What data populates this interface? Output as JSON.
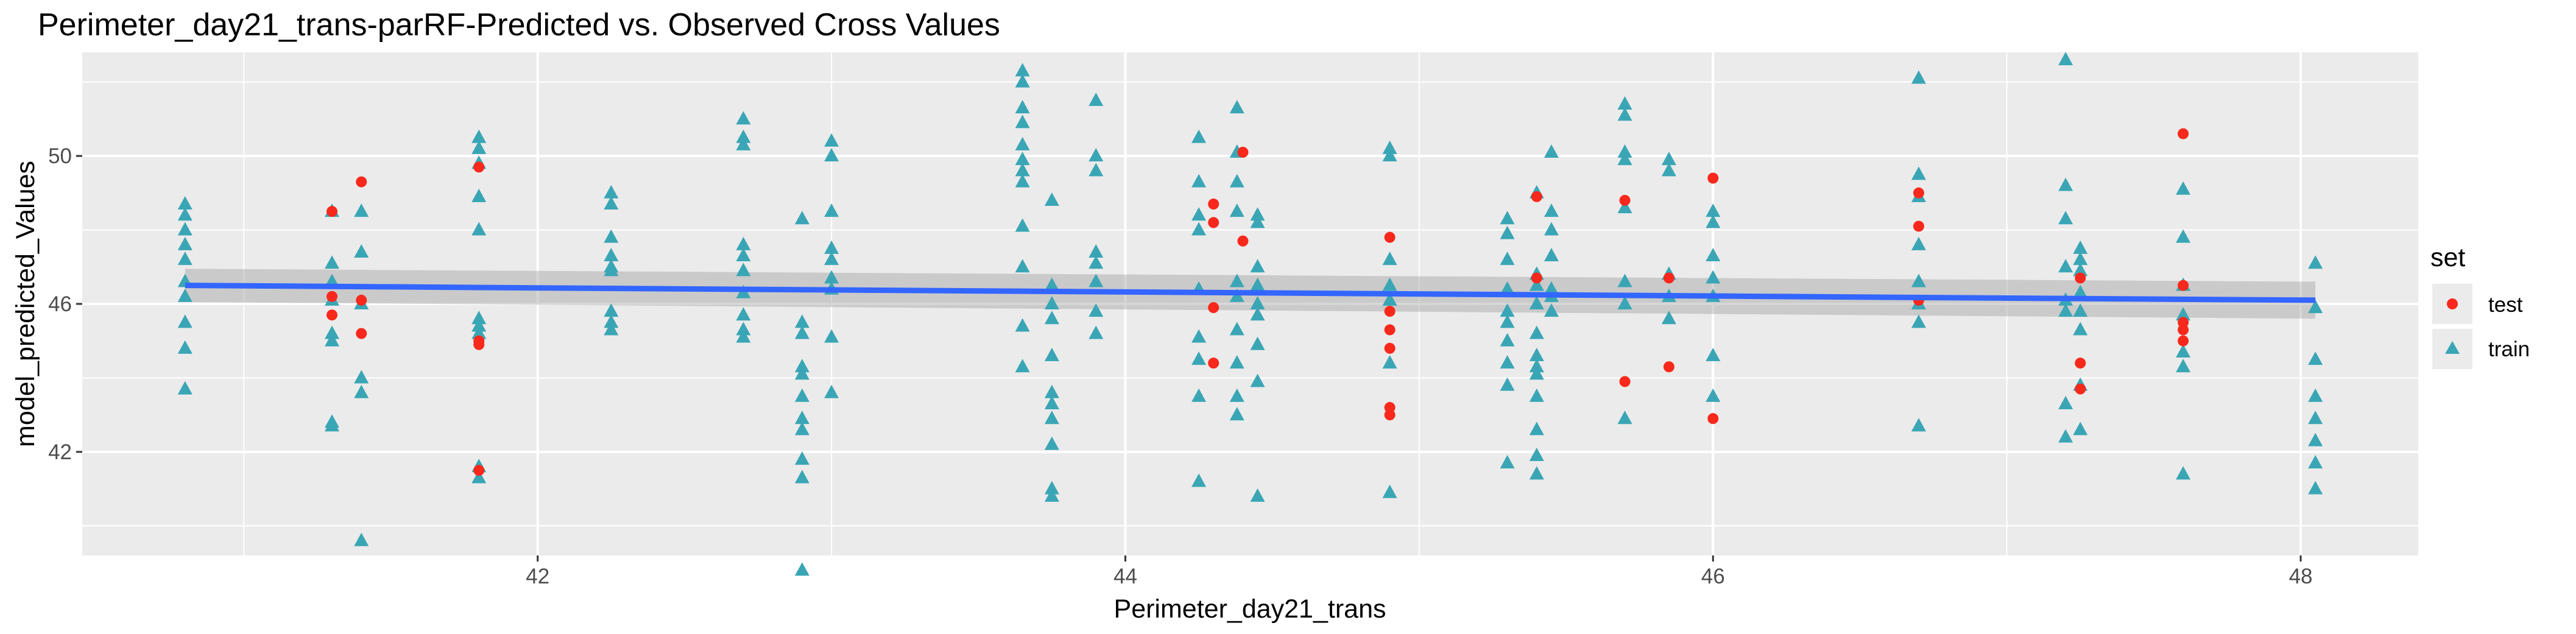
{
  "chart_data": {
    "type": "scatter",
    "title": "Perimeter_day21_trans-parRF-Predicted vs. Observed Cross Values",
    "xlabel": "Perimeter_day21_trans",
    "ylabel": "model_predicted_Values",
    "xlim": [
      40.45,
      48.4
    ],
    "ylim": [
      39.2,
      52.8
    ],
    "x_ticks": [
      42,
      44,
      46,
      48
    ],
    "x_tick_labels": [
      "42",
      "44",
      "46",
      "48"
    ],
    "y_ticks": [
      42,
      46,
      50
    ],
    "y_tick_labels": [
      "42",
      "46",
      "50"
    ],
    "grid": true,
    "legend": {
      "title": "set",
      "position": "right"
    },
    "colors": {
      "panel": "#ebebeb",
      "grid": "#ffffff",
      "fit_line": "#3366ff",
      "ribbon": "#999999"
    },
    "series": [
      {
        "name": "test",
        "marker": "circle",
        "color": "#f8291c",
        "points": [
          [
            41.3,
            48.5
          ],
          [
            41.3,
            46.2
          ],
          [
            41.3,
            45.7
          ],
          [
            41.4,
            49.3
          ],
          [
            41.4,
            46.1
          ],
          [
            41.4,
            45.2
          ],
          [
            41.8,
            49.7
          ],
          [
            41.8,
            45.0
          ],
          [
            41.8,
            44.9
          ],
          [
            41.8,
            41.5
          ],
          [
            44.3,
            48.7
          ],
          [
            44.3,
            48.2
          ],
          [
            44.3,
            45.9
          ],
          [
            44.3,
            44.4
          ],
          [
            44.4,
            50.1
          ],
          [
            44.4,
            47.7
          ],
          [
            44.9,
            47.8
          ],
          [
            44.9,
            45.8
          ],
          [
            44.9,
            45.3
          ],
          [
            44.9,
            44.8
          ],
          [
            44.9,
            43.2
          ],
          [
            44.9,
            43.0
          ],
          [
            45.4,
            46.7
          ],
          [
            45.4,
            48.9
          ],
          [
            45.7,
            48.8
          ],
          [
            45.7,
            43.9
          ],
          [
            45.85,
            46.7
          ],
          [
            45.85,
            44.3
          ],
          [
            46.0,
            49.4
          ],
          [
            46.0,
            42.9
          ],
          [
            46.7,
            49.0
          ],
          [
            46.7,
            48.1
          ],
          [
            46.7,
            46.1
          ],
          [
            47.25,
            46.7
          ],
          [
            47.25,
            44.4
          ],
          [
            47.25,
            43.7
          ],
          [
            47.6,
            50.6
          ],
          [
            47.6,
            46.5
          ],
          [
            47.6,
            45.5
          ],
          [
            47.6,
            45.3
          ],
          [
            47.6,
            45.0
          ]
        ]
      },
      {
        "name": "train",
        "marker": "triangle",
        "color": "#3aa6b5",
        "points": [
          [
            40.8,
            48.7
          ],
          [
            40.8,
            48.4
          ],
          [
            40.8,
            48.0
          ],
          [
            40.8,
            47.6
          ],
          [
            40.8,
            47.2
          ],
          [
            40.8,
            46.6
          ],
          [
            40.8,
            46.2
          ],
          [
            40.8,
            45.5
          ],
          [
            40.8,
            44.8
          ],
          [
            40.8,
            43.7
          ],
          [
            41.3,
            48.5
          ],
          [
            41.3,
            47.1
          ],
          [
            41.3,
            46.6
          ],
          [
            41.3,
            46.1
          ],
          [
            41.3,
            45.2
          ],
          [
            41.3,
            45.0
          ],
          [
            41.3,
            42.8
          ],
          [
            41.3,
            42.7
          ],
          [
            41.4,
            48.5
          ],
          [
            41.4,
            47.4
          ],
          [
            41.4,
            46.0
          ],
          [
            41.4,
            44.0
          ],
          [
            41.4,
            43.6
          ],
          [
            41.4,
            39.6
          ],
          [
            41.8,
            50.5
          ],
          [
            41.8,
            50.2
          ],
          [
            41.8,
            49.8
          ],
          [
            41.8,
            48.9
          ],
          [
            41.8,
            48.0
          ],
          [
            41.8,
            45.6
          ],
          [
            41.8,
            45.4
          ],
          [
            41.8,
            45.2
          ],
          [
            41.8,
            41.6
          ],
          [
            41.8,
            41.3
          ],
          [
            42.25,
            49.0
          ],
          [
            42.25,
            48.7
          ],
          [
            42.25,
            47.8
          ],
          [
            42.25,
            47.3
          ],
          [
            42.25,
            47.0
          ],
          [
            42.25,
            46.9
          ],
          [
            42.25,
            45.8
          ],
          [
            42.25,
            45.5
          ],
          [
            42.25,
            45.3
          ],
          [
            42.7,
            51.0
          ],
          [
            42.7,
            50.5
          ],
          [
            42.7,
            50.3
          ],
          [
            42.7,
            47.6
          ],
          [
            42.7,
            47.3
          ],
          [
            42.7,
            46.9
          ],
          [
            42.7,
            46.3
          ],
          [
            42.7,
            45.7
          ],
          [
            42.7,
            45.3
          ],
          [
            42.7,
            45.1
          ],
          [
            42.9,
            48.3
          ],
          [
            42.9,
            45.5
          ],
          [
            42.9,
            45.2
          ],
          [
            42.9,
            44.3
          ],
          [
            42.9,
            44.1
          ],
          [
            42.9,
            43.5
          ],
          [
            42.9,
            42.9
          ],
          [
            42.9,
            42.6
          ],
          [
            42.9,
            41.8
          ],
          [
            42.9,
            41.3
          ],
          [
            42.9,
            38.8
          ],
          [
            43.0,
            50.4
          ],
          [
            43.0,
            50.0
          ],
          [
            43.0,
            48.5
          ],
          [
            43.0,
            47.5
          ],
          [
            43.0,
            47.2
          ],
          [
            43.0,
            46.7
          ],
          [
            43.0,
            46.4
          ],
          [
            43.0,
            45.1
          ],
          [
            43.0,
            43.6
          ],
          [
            43.65,
            52.3
          ],
          [
            43.65,
            52.0
          ],
          [
            43.65,
            51.3
          ],
          [
            43.65,
            50.9
          ],
          [
            43.65,
            50.3
          ],
          [
            43.65,
            49.9
          ],
          [
            43.65,
            49.6
          ],
          [
            43.65,
            49.3
          ],
          [
            43.65,
            48.1
          ],
          [
            43.65,
            47.0
          ],
          [
            43.65,
            45.4
          ],
          [
            43.65,
            44.3
          ],
          [
            43.75,
            48.8
          ],
          [
            43.75,
            46.5
          ],
          [
            43.75,
            46.0
          ],
          [
            43.75,
            45.6
          ],
          [
            43.75,
            44.6
          ],
          [
            43.75,
            43.6
          ],
          [
            43.75,
            43.3
          ],
          [
            43.75,
            42.9
          ],
          [
            43.75,
            42.2
          ],
          [
            43.75,
            41.0
          ],
          [
            43.75,
            40.8
          ],
          [
            43.9,
            51.5
          ],
          [
            43.9,
            50.0
          ],
          [
            43.9,
            49.6
          ],
          [
            43.9,
            47.4
          ],
          [
            43.9,
            47.1
          ],
          [
            43.9,
            46.6
          ],
          [
            43.9,
            45.8
          ],
          [
            43.9,
            45.2
          ],
          [
            44.25,
            50.5
          ],
          [
            44.25,
            49.3
          ],
          [
            44.25,
            48.4
          ],
          [
            44.25,
            48.0
          ],
          [
            44.25,
            46.4
          ],
          [
            44.25,
            45.1
          ],
          [
            44.25,
            44.5
          ],
          [
            44.25,
            43.5
          ],
          [
            44.25,
            41.2
          ],
          [
            44.38,
            51.3
          ],
          [
            44.38,
            50.1
          ],
          [
            44.38,
            49.3
          ],
          [
            44.38,
            48.5
          ],
          [
            44.38,
            46.6
          ],
          [
            44.38,
            46.2
          ],
          [
            44.38,
            45.3
          ],
          [
            44.38,
            44.4
          ],
          [
            44.38,
            43.5
          ],
          [
            44.38,
            43.0
          ],
          [
            44.45,
            48.4
          ],
          [
            44.45,
            48.2
          ],
          [
            44.45,
            47.0
          ],
          [
            44.45,
            46.5
          ],
          [
            44.45,
            46.0
          ],
          [
            44.45,
            45.7
          ],
          [
            44.45,
            44.9
          ],
          [
            44.45,
            43.9
          ],
          [
            44.45,
            40.8
          ],
          [
            44.9,
            50.2
          ],
          [
            44.9,
            50.0
          ],
          [
            44.9,
            47.2
          ],
          [
            44.9,
            46.5
          ],
          [
            44.9,
            46.1
          ],
          [
            44.9,
            44.4
          ],
          [
            44.9,
            40.9
          ],
          [
            45.3,
            48.3
          ],
          [
            45.3,
            47.9
          ],
          [
            45.3,
            47.2
          ],
          [
            45.3,
            46.4
          ],
          [
            45.3,
            45.8
          ],
          [
            45.3,
            45.5
          ],
          [
            45.3,
            45.0
          ],
          [
            45.3,
            44.4
          ],
          [
            45.3,
            43.8
          ],
          [
            45.3,
            41.7
          ],
          [
            45.45,
            50.1
          ],
          [
            45.45,
            48.5
          ],
          [
            45.45,
            48.0
          ],
          [
            45.45,
            47.3
          ],
          [
            45.45,
            46.4
          ],
          [
            45.45,
            46.2
          ],
          [
            45.45,
            45.8
          ],
          [
            45.85,
            49.9
          ],
          [
            45.85,
            49.6
          ],
          [
            45.85,
            46.8
          ],
          [
            45.85,
            45.6
          ],
          [
            45.85,
            46.2
          ],
          [
            45.4,
            49.0
          ],
          [
            45.4,
            46.8
          ],
          [
            45.4,
            46.5
          ],
          [
            45.4,
            46.0
          ],
          [
            45.4,
            45.2
          ],
          [
            45.4,
            44.6
          ],
          [
            45.4,
            44.3
          ],
          [
            45.4,
            44.1
          ],
          [
            45.4,
            43.5
          ],
          [
            45.4,
            42.6
          ],
          [
            45.4,
            41.9
          ],
          [
            45.4,
            41.4
          ],
          [
            45.7,
            51.4
          ],
          [
            45.7,
            51.1
          ],
          [
            45.7,
            50.1
          ],
          [
            45.7,
            49.9
          ],
          [
            45.7,
            48.6
          ],
          [
            45.7,
            46.6
          ],
          [
            45.7,
            46.0
          ],
          [
            45.7,
            42.9
          ],
          [
            46.0,
            48.5
          ],
          [
            46.0,
            48.2
          ],
          [
            46.0,
            47.3
          ],
          [
            46.0,
            46.7
          ],
          [
            46.0,
            46.2
          ],
          [
            46.0,
            44.6
          ],
          [
            46.0,
            43.5
          ],
          [
            46.7,
            52.1
          ],
          [
            46.7,
            49.5
          ],
          [
            46.7,
            48.9
          ],
          [
            46.7,
            47.6
          ],
          [
            46.7,
            46.6
          ],
          [
            46.7,
            46.0
          ],
          [
            46.7,
            45.5
          ],
          [
            46.7,
            42.7
          ],
          [
            47.2,
            52.6
          ],
          [
            47.2,
            49.2
          ],
          [
            47.2,
            48.3
          ],
          [
            47.2,
            47.0
          ],
          [
            47.2,
            46.1
          ],
          [
            47.2,
            45.8
          ],
          [
            47.2,
            43.3
          ],
          [
            47.2,
            42.4
          ],
          [
            47.25,
            47.5
          ],
          [
            47.25,
            47.2
          ],
          [
            47.25,
            46.9
          ],
          [
            47.25,
            46.3
          ],
          [
            47.25,
            45.8
          ],
          [
            47.25,
            45.3
          ],
          [
            47.25,
            43.8
          ],
          [
            47.25,
            42.6
          ],
          [
            47.6,
            49.1
          ],
          [
            47.6,
            47.8
          ],
          [
            47.6,
            46.5
          ],
          [
            47.6,
            45.7
          ],
          [
            47.6,
            44.7
          ],
          [
            47.6,
            44.3
          ],
          [
            47.6,
            41.4
          ],
          [
            48.05,
            47.1
          ],
          [
            48.05,
            45.9
          ],
          [
            48.05,
            44.5
          ],
          [
            48.05,
            43.5
          ],
          [
            48.05,
            42.9
          ],
          [
            48.05,
            42.3
          ],
          [
            48.05,
            41.7
          ],
          [
            48.05,
            41.0
          ]
        ]
      }
    ],
    "fit_line": {
      "x": [
        40.8,
        48.05
      ],
      "y": [
        46.5,
        46.1
      ],
      "ribbon_lower": [
        46.05,
        45.6
      ],
      "ribbon_upper": [
        46.95,
        46.6
      ]
    }
  }
}
